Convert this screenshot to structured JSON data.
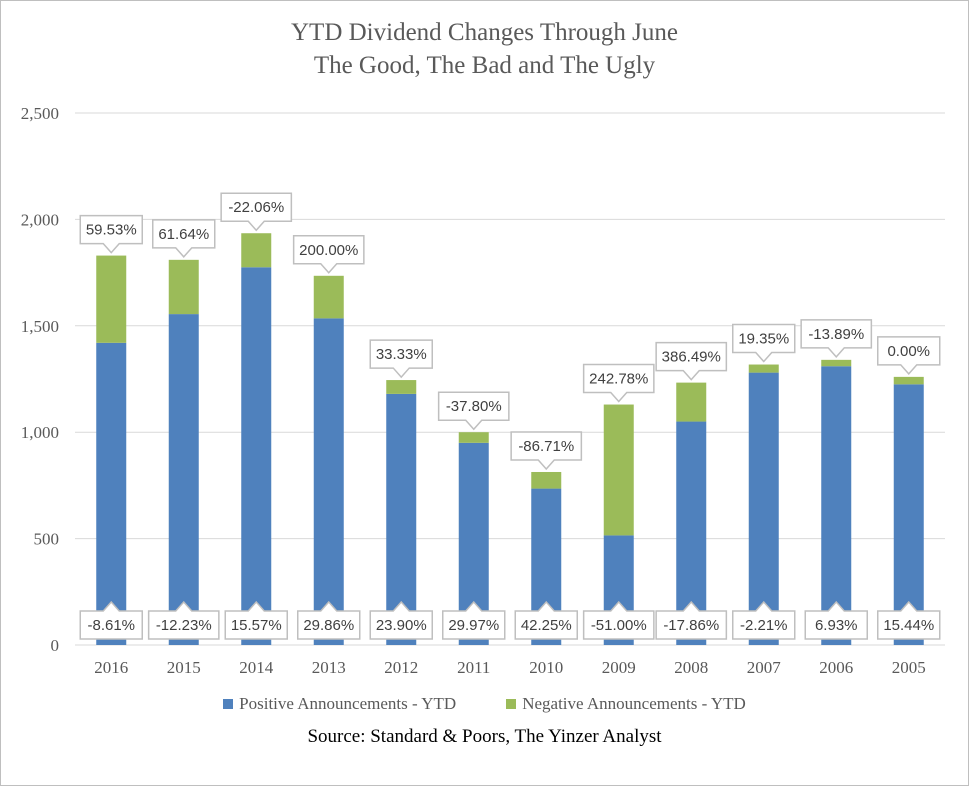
{
  "chart_data": {
    "type": "bar",
    "stacked": true,
    "title": "YTD Dividend Changes Through June",
    "subtitle": "The Good, The Bad and The Ugly",
    "source": "Source: Standard & Poors, The Yinzer Analyst",
    "categories": [
      "2016",
      "2015",
      "2014",
      "2013",
      "2012",
      "2011",
      "2010",
      "2009",
      "2008",
      "2007",
      "2006",
      "2005"
    ],
    "series": [
      {
        "name": "Positive Announcements - YTD",
        "color": "#4f81bd",
        "values": [
          1420,
          1555,
          1775,
          1535,
          1180,
          950,
          735,
          515,
          1050,
          1280,
          1310,
          1225
        ],
        "labels": [
          "-8.61%",
          "-12.23%",
          "15.57%",
          "29.86%",
          "23.90%",
          "29.97%",
          "42.25%",
          "-51.00%",
          "-17.86%",
          "-2.21%",
          "6.93%",
          "15.44%"
        ]
      },
      {
        "name": "Negative Announcements - YTD",
        "color": "#9bbb59",
        "values": [
          410,
          255,
          160,
          200,
          65,
          50,
          78,
          615,
          183,
          38,
          30,
          35
        ],
        "labels": [
          "59.53%",
          "61.64%",
          "-22.06%",
          "200.00%",
          "33.33%",
          "-37.80%",
          "-86.71%",
          "242.78%",
          "386.49%",
          "19.35%",
          "-13.89%",
          "0.00%"
        ]
      }
    ],
    "y_ticks": [
      "0",
      "500",
      "1,000",
      "1,500",
      "2,000",
      "2,500"
    ],
    "ylim": [
      0,
      2500
    ],
    "grid": true,
    "legend": "bottom"
  }
}
